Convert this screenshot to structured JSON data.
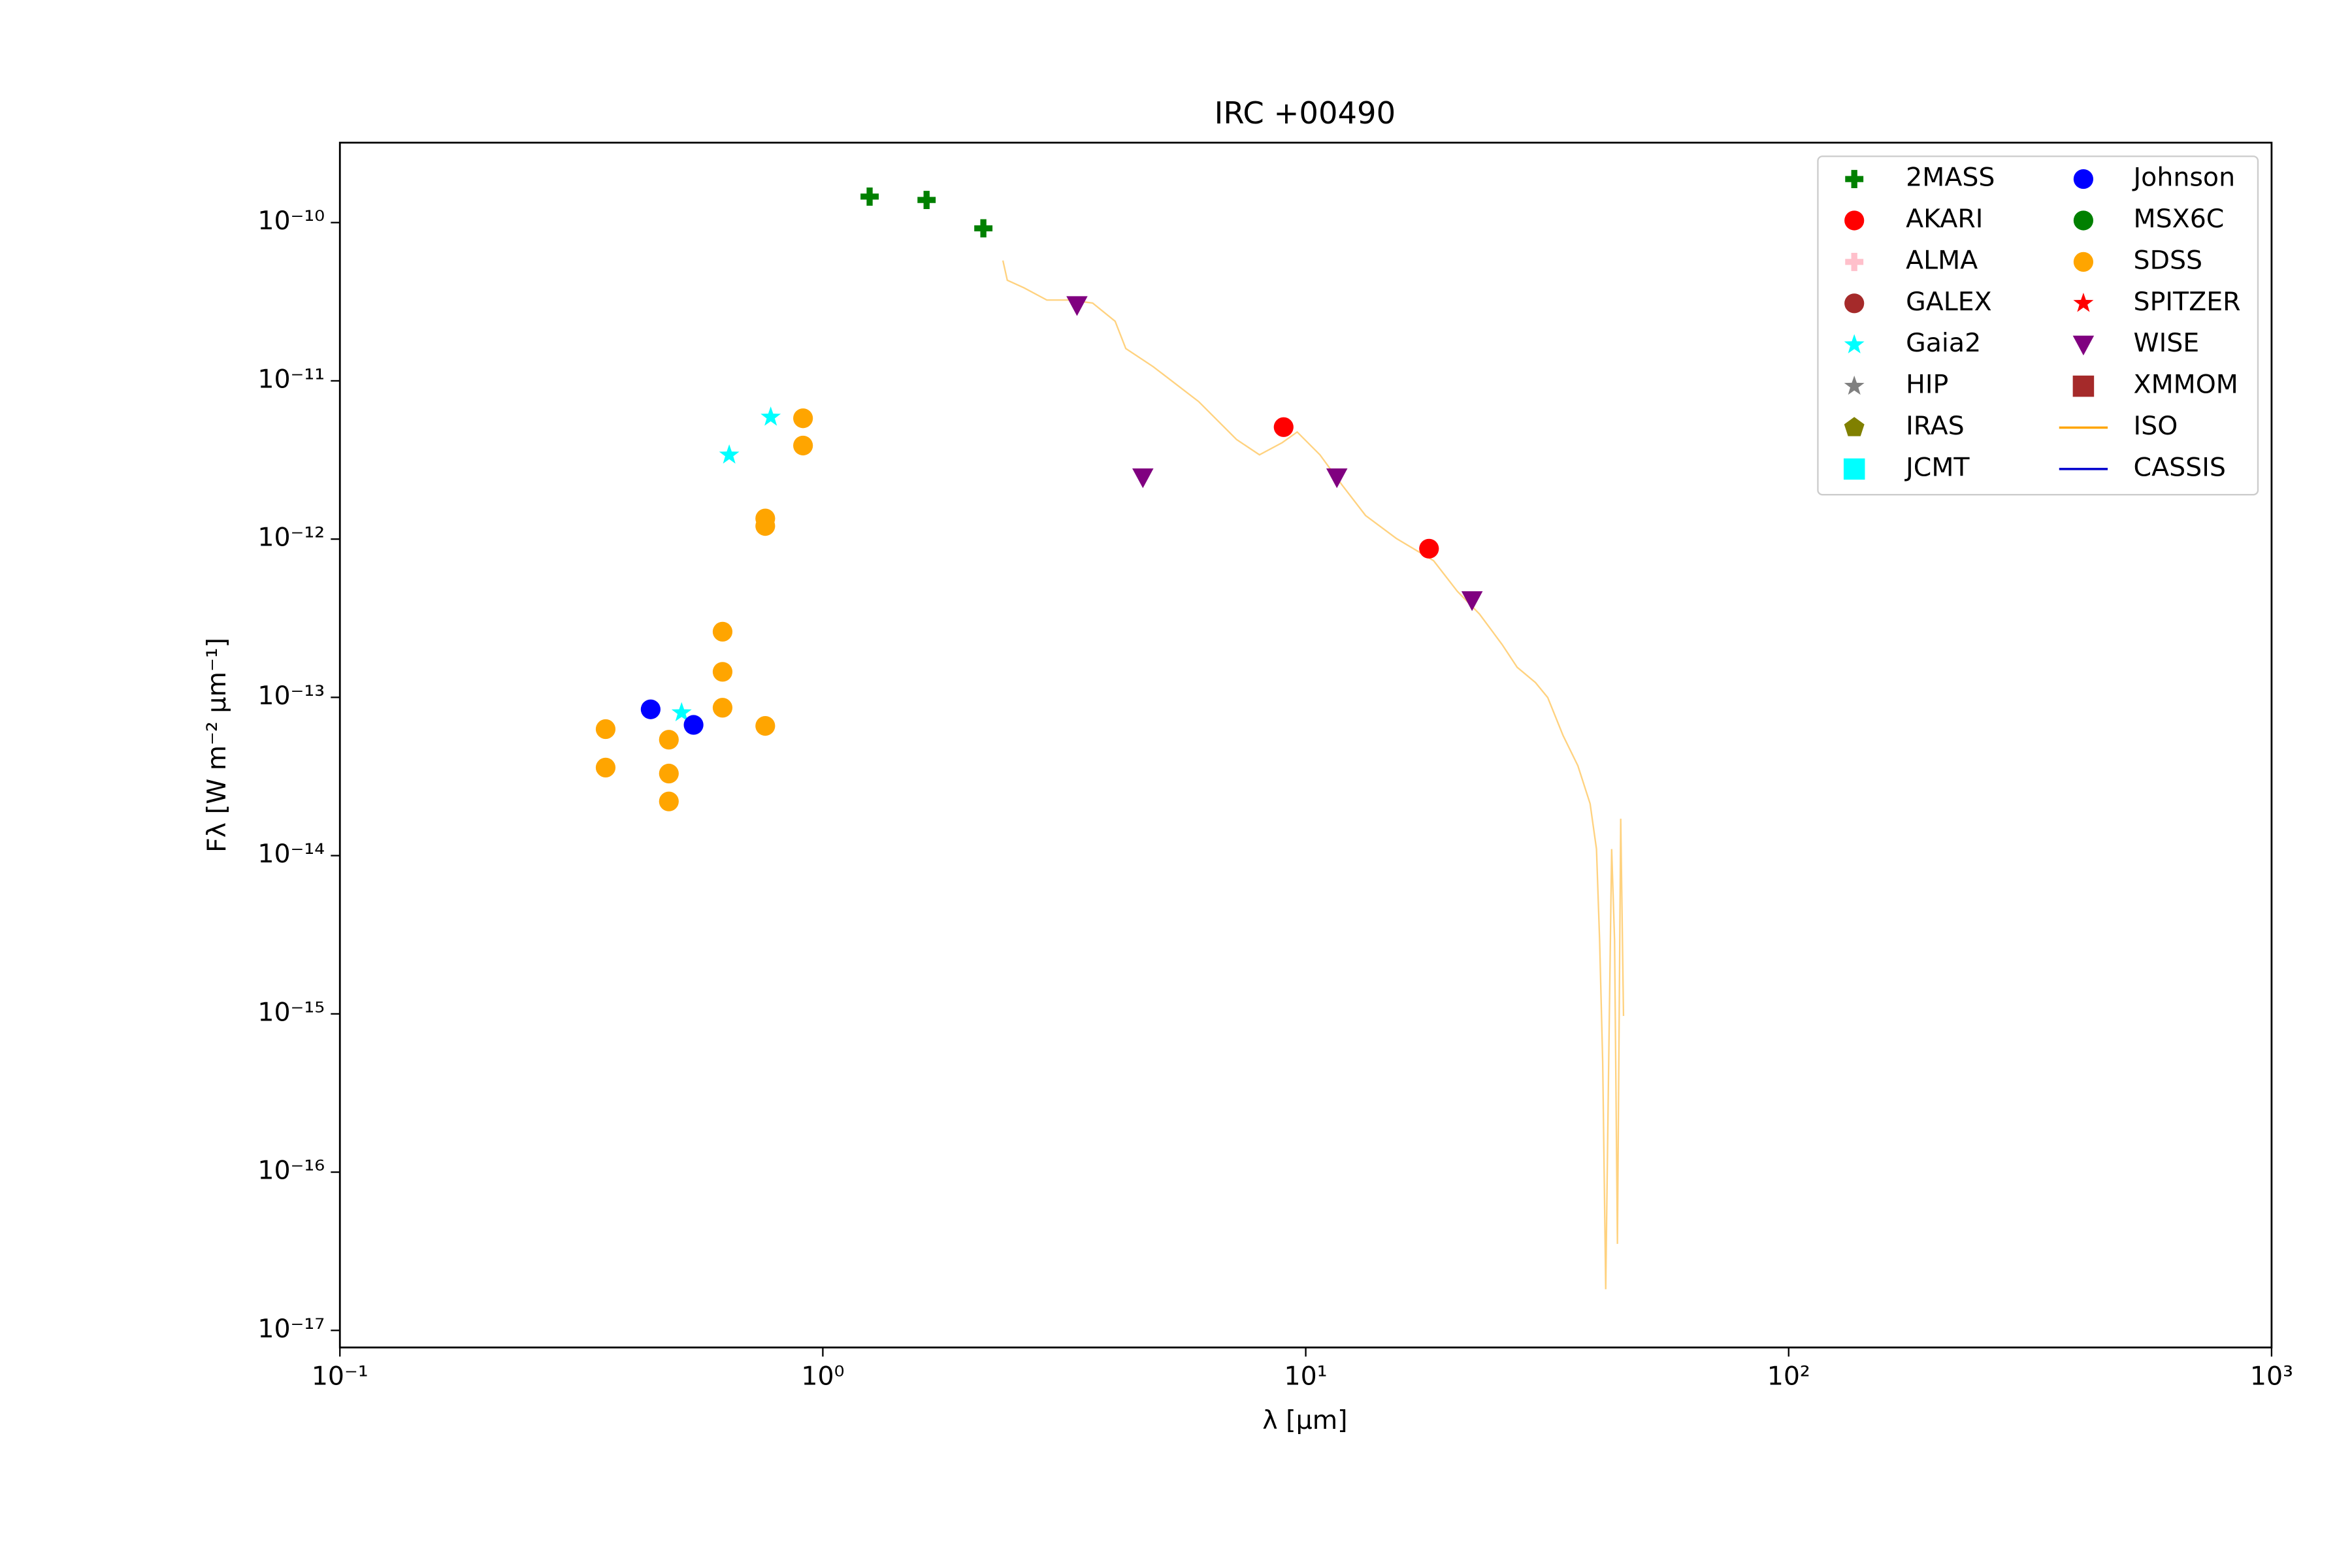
{
  "chart_data": {
    "type": "scatter",
    "title": "IRC +00490",
    "x_label": "λ [μm]",
    "y_label": "Fλ [W m⁻² μm⁻¹]",
    "x_scale": "log",
    "y_scale": "log",
    "xlim": [
      0.1,
      1000
    ],
    "ylim": [
      3.2e-10,
      7.8e-18
    ],
    "xticks": [
      {
        "value": 0.1,
        "label": "10⁻¹"
      },
      {
        "value": 1,
        "label": "10⁰"
      },
      {
        "value": 10,
        "label": "10¹"
      },
      {
        "value": 100,
        "label": "10²"
      },
      {
        "value": 1000,
        "label": "10³"
      }
    ],
    "yticks": [
      {
        "value": 1e-10,
        "label": "10⁻¹⁰"
      },
      {
        "value": 1e-11,
        "label": "10⁻¹¹"
      },
      {
        "value": 1e-12,
        "label": "10⁻¹²"
      },
      {
        "value": 1e-13,
        "label": "10⁻¹³"
      },
      {
        "value": 1e-14,
        "label": "10⁻¹⁴"
      },
      {
        "value": 1e-15,
        "label": "10⁻¹⁵"
      },
      {
        "value": 1e-16,
        "label": "10⁻¹⁶"
      },
      {
        "value": 1e-17,
        "label": "10⁻¹⁷"
      }
    ],
    "legend": "upper right",
    "series": [
      {
        "name": "2MASS",
        "color": "#008000",
        "marker": "plus",
        "x": [
          1.25,
          1.64,
          2.15
        ],
        "values": [
          1.46e-10,
          1.39e-10,
          9.2e-11
        ]
      },
      {
        "name": "AKARI",
        "color": "#ff0000",
        "marker": "circle",
        "x": [
          9.0,
          18.0
        ],
        "values": [
          5.1e-12,
          8.7e-13
        ]
      },
      {
        "name": "ALMA",
        "color": "#ffc0cb",
        "marker": "plus",
        "x": [],
        "values": []
      },
      {
        "name": "GALEX",
        "color": "#a52a2a",
        "marker": "circle",
        "x": [],
        "values": []
      },
      {
        "name": "Gaia2",
        "color": "#00ffff",
        "marker": "star",
        "x": [
          0.64,
          0.78,
          0.51
        ],
        "values": [
          3.4e-12,
          5.9e-12,
          8e-14
        ]
      },
      {
        "name": "HIP",
        "color": "#808080",
        "marker": "star",
        "x": [],
        "values": []
      },
      {
        "name": "IRAS",
        "color": "#808000",
        "marker": "pentagon",
        "x": [],
        "values": []
      },
      {
        "name": "JCMT",
        "color": "#00ffff",
        "marker": "square",
        "x": [],
        "values": []
      },
      {
        "name": "Johnson",
        "color": "#0000ff",
        "marker": "circle",
        "x": [
          0.44,
          0.54
        ],
        "values": [
          8.4e-14,
          6.7e-14
        ]
      },
      {
        "name": "MSX6C",
        "color": "#008000",
        "marker": "circle",
        "x": [],
        "values": []
      },
      {
        "name": "SDSS",
        "color": "#ffa500",
        "marker": "circle",
        "x": [
          0.355,
          0.355,
          0.48,
          0.48,
          0.48,
          0.62,
          0.62,
          0.62,
          0.76,
          0.76,
          0.76,
          0.91,
          0.91
        ],
        "values": [
          6.3e-14,
          3.6e-14,
          5.4e-14,
          3.3e-14,
          2.2e-14,
          2.6e-13,
          1.45e-13,
          8.6e-14,
          1.35e-12,
          1.21e-12,
          6.6e-14,
          5.8e-12,
          3.9e-12
        ]
      },
      {
        "name": "SPITZER",
        "color": "#ff0000",
        "marker": "star",
        "x": [],
        "values": []
      },
      {
        "name": "WISE",
        "color": "#800080",
        "marker": "triangle_down",
        "x": [
          3.36,
          4.6,
          11.6,
          22.1
        ],
        "values": [
          3e-11,
          2.45e-12,
          2.45e-12,
          4.1e-13
        ]
      },
      {
        "name": "XMMOM",
        "color": "#a52a2a",
        "marker": "square",
        "x": [],
        "values": []
      },
      {
        "name": "ISO",
        "color": "#ffa500",
        "marker": "line",
        "x": [
          2.36,
          2.41,
          2.61,
          2.91,
          3.25,
          3.62,
          4.03,
          4.24,
          4.83,
          6.0,
          7.19,
          8.02,
          8.94,
          9.6,
          10.7,
          11.9,
          13.3,
          15.4,
          18.4,
          20.6,
          22.9,
          25.5,
          27.4,
          29.9,
          31.7,
          34.1,
          36.6,
          38.8,
          40.0,
          40.6,
          41.2,
          41.8,
          42.4,
          43.0,
          43.6,
          44.2,
          44.9,
          45.5
        ],
        "values": [
          5.76e-11,
          4.32e-11,
          3.87e-11,
          3.24e-11,
          3.24e-11,
          3.1e-11,
          2.38e-11,
          1.6e-11,
          1.23e-11,
          7.4e-12,
          4.26e-12,
          3.41e-12,
          4.07e-12,
          4.75e-12,
          3.41e-12,
          2.19e-12,
          1.41e-12,
          1.01e-12,
          7.3e-13,
          4.68e-13,
          3.36e-13,
          2.16e-13,
          1.55e-13,
          1.24e-13,
          9.98e-14,
          5.75e-14,
          3.7e-14,
          2.13e-14,
          1.1e-14,
          2.92e-15,
          4.99e-16,
          1.82e-17,
          4.99e-16,
          1.1e-14,
          2.92e-15,
          3.52e-17,
          1.71e-14,
          9.7e-16
        ]
      },
      {
        "name": "CASSIS",
        "color": "#0000cd",
        "marker": "line",
        "x": [],
        "values": []
      }
    ]
  }
}
